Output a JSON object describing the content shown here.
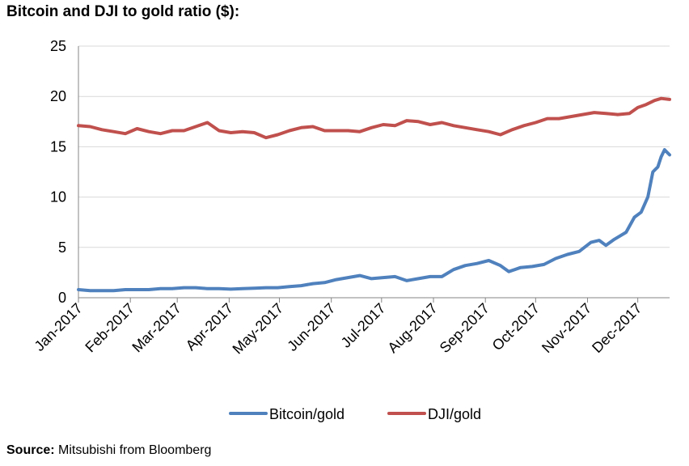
{
  "source": {
    "label": "Source:",
    "text": "Mitsubishi from Bloomberg"
  },
  "colors": {
    "bitcoin": "#4F81BD",
    "dji": "#C0504D",
    "grid": "#D9D9D9",
    "axis": "#868686"
  },
  "chart_data": {
    "type": "line",
    "title": "Bitcoin and DJI to gold ratio ($):",
    "xlabel": "",
    "ylabel": "",
    "ylim": [
      0,
      25
    ],
    "yticks": [
      "0",
      "5",
      "10",
      "15",
      "20",
      "25"
    ],
    "xticks": [
      "Jan-2017",
      "Feb-2017",
      "Mar-2017",
      "Apr-2017",
      "May-2017",
      "Jun-2017",
      "Jul-2017",
      "Aug-2017",
      "Sep-2017",
      "Oct-2017",
      "Nov-2017",
      "Dec-2017"
    ],
    "grid": "horizontal",
    "legend": "bottom",
    "series": [
      {
        "name": "Bitcoin/gold",
        "color": "#4F81BD",
        "points": [
          [
            "2017-01-01",
            0.8
          ],
          [
            "2017-01-08",
            0.7
          ],
          [
            "2017-01-15",
            0.7
          ],
          [
            "2017-01-22",
            0.7
          ],
          [
            "2017-01-29",
            0.8
          ],
          [
            "2017-02-05",
            0.8
          ],
          [
            "2017-02-12",
            0.8
          ],
          [
            "2017-02-19",
            0.9
          ],
          [
            "2017-02-26",
            0.9
          ],
          [
            "2017-03-05",
            1.0
          ],
          [
            "2017-03-12",
            1.0
          ],
          [
            "2017-03-19",
            0.9
          ],
          [
            "2017-03-26",
            0.9
          ],
          [
            "2017-04-02",
            0.85
          ],
          [
            "2017-04-09",
            0.9
          ],
          [
            "2017-04-16",
            0.95
          ],
          [
            "2017-04-23",
            1.0
          ],
          [
            "2017-04-30",
            1.0
          ],
          [
            "2017-05-07",
            1.1
          ],
          [
            "2017-05-14",
            1.2
          ],
          [
            "2017-05-21",
            1.4
          ],
          [
            "2017-05-28",
            1.5
          ],
          [
            "2017-06-04",
            1.8
          ],
          [
            "2017-06-11",
            2.0
          ],
          [
            "2017-06-18",
            2.2
          ],
          [
            "2017-06-25",
            1.9
          ],
          [
            "2017-07-02",
            2.0
          ],
          [
            "2017-07-09",
            2.1
          ],
          [
            "2017-07-16",
            1.7
          ],
          [
            "2017-07-23",
            1.9
          ],
          [
            "2017-07-30",
            2.1
          ],
          [
            "2017-08-06",
            2.1
          ],
          [
            "2017-08-13",
            2.8
          ],
          [
            "2017-08-20",
            3.2
          ],
          [
            "2017-08-27",
            3.4
          ],
          [
            "2017-09-03",
            3.7
          ],
          [
            "2017-09-10",
            3.2
          ],
          [
            "2017-09-15",
            2.6
          ],
          [
            "2017-09-22",
            3.0
          ],
          [
            "2017-09-29",
            3.1
          ],
          [
            "2017-10-06",
            3.3
          ],
          [
            "2017-10-13",
            3.9
          ],
          [
            "2017-10-20",
            4.3
          ],
          [
            "2017-10-27",
            4.6
          ],
          [
            "2017-11-03",
            5.5
          ],
          [
            "2017-11-08",
            5.7
          ],
          [
            "2017-11-12",
            5.2
          ],
          [
            "2017-11-17",
            5.8
          ],
          [
            "2017-11-24",
            6.5
          ],
          [
            "2017-11-29",
            8.0
          ],
          [
            "2017-12-03",
            8.5
          ],
          [
            "2017-12-07",
            10.0
          ],
          [
            "2017-12-10",
            12.5
          ],
          [
            "2017-12-13",
            13.0
          ],
          [
            "2017-12-15",
            14.0
          ],
          [
            "2017-12-17",
            14.7
          ],
          [
            "2017-12-20",
            14.2
          ]
        ]
      },
      {
        "name": "DJI/gold",
        "color": "#C0504D",
        "points": [
          [
            "2017-01-01",
            17.1
          ],
          [
            "2017-01-08",
            17.0
          ],
          [
            "2017-01-15",
            16.7
          ],
          [
            "2017-01-22",
            16.5
          ],
          [
            "2017-01-29",
            16.3
          ],
          [
            "2017-02-05",
            16.8
          ],
          [
            "2017-02-12",
            16.5
          ],
          [
            "2017-02-19",
            16.3
          ],
          [
            "2017-02-26",
            16.6
          ],
          [
            "2017-03-05",
            16.6
          ],
          [
            "2017-03-12",
            17.0
          ],
          [
            "2017-03-19",
            17.4
          ],
          [
            "2017-03-26",
            16.6
          ],
          [
            "2017-04-02",
            16.4
          ],
          [
            "2017-04-09",
            16.5
          ],
          [
            "2017-04-16",
            16.4
          ],
          [
            "2017-04-23",
            15.9
          ],
          [
            "2017-04-30",
            16.2
          ],
          [
            "2017-05-07",
            16.6
          ],
          [
            "2017-05-14",
            16.9
          ],
          [
            "2017-05-21",
            17.0
          ],
          [
            "2017-05-28",
            16.6
          ],
          [
            "2017-06-04",
            16.6
          ],
          [
            "2017-06-11",
            16.6
          ],
          [
            "2017-06-18",
            16.5
          ],
          [
            "2017-06-25",
            16.9
          ],
          [
            "2017-07-02",
            17.2
          ],
          [
            "2017-07-09",
            17.1
          ],
          [
            "2017-07-16",
            17.6
          ],
          [
            "2017-07-23",
            17.5
          ],
          [
            "2017-07-30",
            17.2
          ],
          [
            "2017-08-06",
            17.4
          ],
          [
            "2017-08-13",
            17.1
          ],
          [
            "2017-08-20",
            16.9
          ],
          [
            "2017-08-27",
            16.7
          ],
          [
            "2017-09-03",
            16.5
          ],
          [
            "2017-09-10",
            16.2
          ],
          [
            "2017-09-17",
            16.7
          ],
          [
            "2017-09-24",
            17.1
          ],
          [
            "2017-10-01",
            17.4
          ],
          [
            "2017-10-08",
            17.8
          ],
          [
            "2017-10-15",
            17.8
          ],
          [
            "2017-10-22",
            18.0
          ],
          [
            "2017-10-29",
            18.2
          ],
          [
            "2017-11-05",
            18.4
          ],
          [
            "2017-11-12",
            18.3
          ],
          [
            "2017-11-19",
            18.2
          ],
          [
            "2017-11-26",
            18.3
          ],
          [
            "2017-12-01",
            18.9
          ],
          [
            "2017-12-06",
            19.2
          ],
          [
            "2017-12-11",
            19.6
          ],
          [
            "2017-12-15",
            19.8
          ],
          [
            "2017-12-20",
            19.7
          ]
        ]
      }
    ]
  }
}
